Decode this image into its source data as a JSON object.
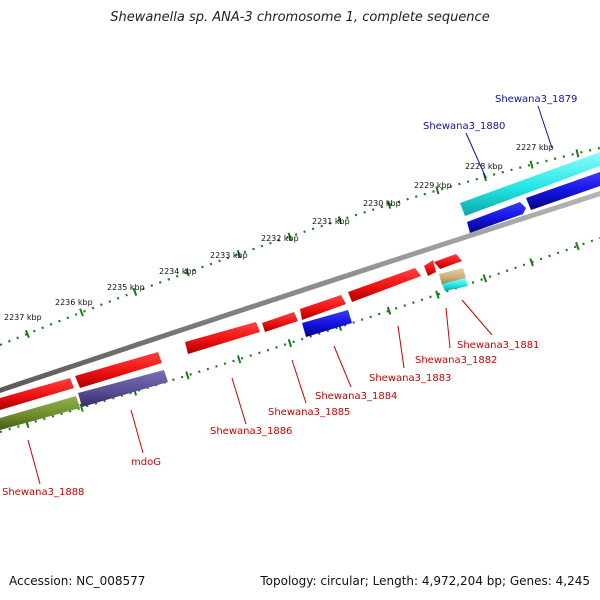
{
  "header": {
    "title": "Shewanella sp. ANA-3 chromosome 1, complete sequence"
  },
  "footer": {
    "accession": "Accession: NC_008577",
    "summary": "Topology: circular; Length: 4,972,204 bp; Genes: 4,245"
  },
  "colors": {
    "backbone": "#8a8a8a",
    "tick": "#1d7a1d",
    "forward_gene": "#ee1111",
    "reverse_gene": "#1111dd",
    "cyan_gene": "#22e6e6",
    "olive_gene": "#6f8f2c",
    "purple_gene": "#5a4f96",
    "tan_gene": "#c9b27a",
    "label_red": "#cc0000",
    "label_blue": "#1111aa"
  },
  "kbp_labels": [
    "2227 kbp",
    "2228 kbp",
    "2229 kbp",
    "2230 kbp",
    "2231 kbp",
    "2232 kbp",
    "2233 kbp",
    "2234 kbp",
    "2235 kbp",
    "2236 kbp",
    "2237 kbp"
  ],
  "gene_labels": [
    {
      "text": "Shewana3_1879",
      "color": "blue"
    },
    {
      "text": "Shewana3_1880",
      "color": "blue"
    },
    {
      "text": "Shewana3_1881",
      "color": "red"
    },
    {
      "text": "Shewana3_1882",
      "color": "red"
    },
    {
      "text": "Shewana3_1883",
      "color": "red"
    },
    {
      "text": "Shewana3_1884",
      "color": "red"
    },
    {
      "text": "Shewana3_1885",
      "color": "red"
    },
    {
      "text": "Shewana3_1886",
      "color": "red"
    },
    {
      "text": "mdoG",
      "color": "red"
    },
    {
      "text": "Shewana3_1888",
      "color": "red"
    }
  ]
}
